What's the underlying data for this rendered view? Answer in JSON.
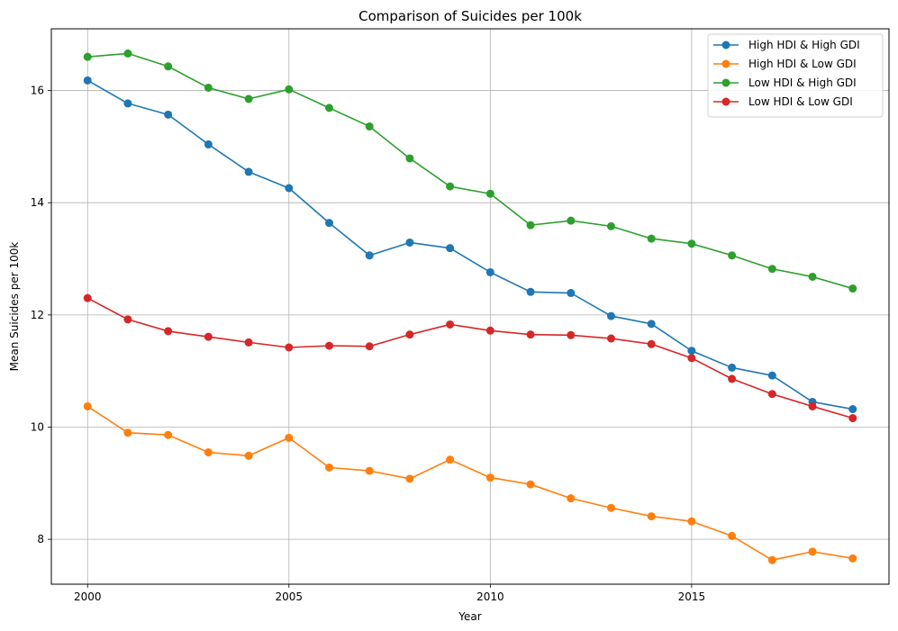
{
  "chart_data": {
    "type": "line",
    "title": "Comparison of Suicides per 100k",
    "xlabel": "Year",
    "ylabel": "Mean Suicides per 100k",
    "xlim": [
      1999.1,
      2019.9
    ],
    "ylim": [
      7.2,
      17.1
    ],
    "xticks": [
      2000,
      2005,
      2010,
      2015
    ],
    "yticks": [
      8,
      10,
      12,
      14,
      16
    ],
    "grid": true,
    "legend": "top-right",
    "x": [
      2000,
      2001,
      2002,
      2003,
      2004,
      2005,
      2006,
      2007,
      2008,
      2009,
      2010,
      2011,
      2012,
      2013,
      2014,
      2015,
      2016,
      2017,
      2018,
      2019
    ],
    "series": [
      {
        "name": "High HDI & High GDI",
        "color": "#1f77b4",
        "values": [
          16.18,
          15.77,
          15.57,
          15.04,
          14.55,
          14.26,
          13.64,
          13.06,
          13.29,
          13.19,
          12.76,
          12.41,
          12.39,
          11.98,
          11.84,
          11.36,
          11.06,
          10.92,
          10.45,
          10.32
        ]
      },
      {
        "name": "High HDI & Low GDI",
        "color": "#ff7f0e",
        "values": [
          10.37,
          9.9,
          9.86,
          9.55,
          9.49,
          9.81,
          9.28,
          9.22,
          9.08,
          9.42,
          9.1,
          8.98,
          8.73,
          8.56,
          8.41,
          8.32,
          8.06,
          7.63,
          7.78,
          7.66
        ]
      },
      {
        "name": "Low HDI & High GDI",
        "color": "#2ca02c",
        "values": [
          16.6,
          16.66,
          16.43,
          16.05,
          15.85,
          16.02,
          15.69,
          15.36,
          14.79,
          14.29,
          14.16,
          13.6,
          13.68,
          13.58,
          13.36,
          13.27,
          13.06,
          12.82,
          12.68,
          12.47
        ]
      },
      {
        "name": "Low HDI & Low GDI",
        "color": "#d62728",
        "values": [
          12.3,
          11.92,
          11.71,
          11.61,
          11.51,
          11.42,
          11.45,
          11.44,
          11.65,
          11.83,
          11.72,
          11.65,
          11.64,
          11.58,
          11.48,
          11.23,
          10.86,
          10.59,
          10.37,
          10.16
        ]
      }
    ]
  }
}
